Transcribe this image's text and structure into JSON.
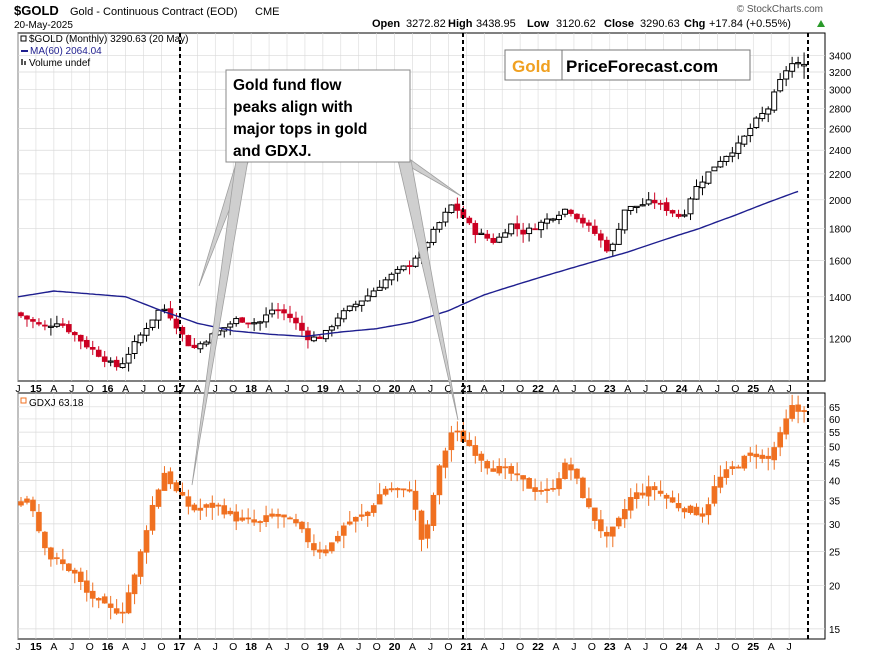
{
  "header": {
    "symbol": "$GOLD",
    "name": "Gold - Continuous Contract (EOD)",
    "exchange": "CME",
    "date": "20-May-2025",
    "open_label": "Open",
    "open": "3272.82",
    "high_label": "High",
    "high": "3438.95",
    "low_label": "Low",
    "low": "3120.62",
    "close_label": "Close",
    "close": "3290.63",
    "chg_label": "Chg",
    "chg": "+17.84 (+0.55%)",
    "watermark": "© StockCharts.com"
  },
  "legend": {
    "line1": "$GOLD (Monthly) 3290.63 (20 May)",
    "line2": "MA(60) 2064.04",
    "line3": "Volume undef",
    "gdxj": "GDXJ 63.18"
  },
  "annotation": {
    "lines": [
      "Gold fund flow",
      "peaks align with",
      "major tops in gold",
      "and GDXJ."
    ]
  },
  "logo": {
    "word1": "Gold",
    "word2": "PriceForecast.com"
  },
  "colors": {
    "up": "#000000",
    "down": "#cc0022",
    "ma": "#1f1f8f",
    "gdxj": "#f07020",
    "logo_gold": "#f0a020",
    "arrow": "#c8c8c8",
    "grid": "#d9d9d9"
  },
  "chart_data": [
    {
      "type": "ohlc",
      "title": "$GOLD (Monthly)",
      "scale": "log",
      "ylim": [
        1050,
        3600
      ],
      "yticks": [
        1200,
        1400,
        1600,
        1800,
        2000,
        2200,
        2400,
        2600,
        2800,
        3000,
        3200,
        3400
      ],
      "x_start": 2014.5,
      "x_end": 2025.75,
      "x_tick_labels": [
        "J",
        "15",
        "A",
        "J",
        "O",
        "16",
        "A",
        "J",
        "O",
        "17",
        "A",
        "J",
        "O",
        "18",
        "A",
        "J",
        "O",
        "19",
        "A",
        "J",
        "O",
        "20",
        "A",
        "J",
        "O",
        "21",
        "A",
        "J",
        "O",
        "22",
        "A",
        "J",
        "O",
        "23",
        "A",
        "J",
        "O",
        "24",
        "A",
        "J",
        "O",
        "25",
        "A",
        "J"
      ],
      "anchors": [
        [
          2014.5,
          1320
        ],
        [
          2014.9,
          1250
        ],
        [
          2015.1,
          1280
        ],
        [
          2015.5,
          1170
        ],
        [
          2015.9,
          1080
        ],
        [
          2016.0,
          1100
        ],
        [
          2016.5,
          1330
        ],
        [
          2016.6,
          1340
        ],
        [
          2016.9,
          1180
        ],
        [
          2017.0,
          1160
        ],
        [
          2017.6,
          1290
        ],
        [
          2017.9,
          1270
        ],
        [
          2018.1,
          1340
        ],
        [
          2018.3,
          1310
        ],
        [
          2018.6,
          1200
        ],
        [
          2018.8,
          1210
        ],
        [
          2019.0,
          1300
        ],
        [
          2019.4,
          1400
        ],
        [
          2019.7,
          1500
        ],
        [
          2020.0,
          1580
        ],
        [
          2020.2,
          1680
        ],
        [
          2020.6,
          1970
        ],
        [
          2020.9,
          1780
        ],
        [
          2021.2,
          1710
        ],
        [
          2021.4,
          1830
        ],
        [
          2021.6,
          1770
        ],
        [
          2022.2,
          1940
        ],
        [
          2022.6,
          1760
        ],
        [
          2022.8,
          1640
        ],
        [
          2023.0,
          1930
        ],
        [
          2023.4,
          1990
        ],
        [
          2023.8,
          1870
        ],
        [
          2023.95,
          2060
        ],
        [
          2024.3,
          2300
        ],
        [
          2024.6,
          2450
        ],
        [
          2024.8,
          2650
        ],
        [
          2025.0,
          2800
        ],
        [
          2025.2,
          3150
        ],
        [
          2025.3,
          3300
        ],
        [
          2025.38,
          3290
        ]
      ],
      "ma_label": "MA(60)",
      "ma_last": 2064.04,
      "ma_anchors": [
        [
          2014.5,
          1400
        ],
        [
          2015.0,
          1430
        ],
        [
          2016.0,
          1400
        ],
        [
          2016.5,
          1330
        ],
        [
          2017.0,
          1270
        ],
        [
          2017.5,
          1235
        ],
        [
          2018.0,
          1220
        ],
        [
          2018.5,
          1210
        ],
        [
          2019.0,
          1230
        ],
        [
          2019.5,
          1245
        ],
        [
          2020.0,
          1275
        ],
        [
          2020.5,
          1330
        ],
        [
          2021.0,
          1410
        ],
        [
          2022.0,
          1530
        ],
        [
          2023.0,
          1650
        ],
        [
          2024.0,
          1800
        ],
        [
          2024.5,
          1890
        ],
        [
          2025.0,
          1990
        ],
        [
          2025.38,
          2064
        ]
      ],
      "last_bar": {
        "open": 3272.82,
        "high": 3438.95,
        "low": 3120.62,
        "close": 3290.63
      }
    },
    {
      "type": "ohlc",
      "title": "GDXJ",
      "scale": "log",
      "ylim": [
        14.5,
        68
      ],
      "yticks": [
        15,
        20,
        25,
        30,
        35,
        40,
        45,
        50,
        55,
        60,
        65
      ],
      "x_start": 2014.5,
      "x_end": 2025.75,
      "x_tick_labels": [
        "J",
        "15",
        "A",
        "J",
        "O",
        "16",
        "A",
        "J",
        "O",
        "17",
        "A",
        "J",
        "O",
        "18",
        "A",
        "J",
        "O",
        "19",
        "A",
        "J",
        "O",
        "20",
        "A",
        "J",
        "O",
        "21",
        "A",
        "J",
        "O",
        "22",
        "A",
        "J",
        "O",
        "23",
        "A",
        "J",
        "O",
        "24",
        "A",
        "J",
        "O",
        "25",
        "A",
        "J"
      ],
      "anchors": [
        [
          2014.5,
          34
        ],
        [
          2014.7,
          36
        ],
        [
          2014.85,
          28
        ],
        [
          2015.0,
          24
        ],
        [
          2015.3,
          22
        ],
        [
          2015.5,
          19
        ],
        [
          2015.8,
          17
        ],
        [
          2016.0,
          17
        ],
        [
          2016.2,
          22
        ],
        [
          2016.4,
          33
        ],
        [
          2016.6,
          43
        ],
        [
          2016.7,
          38
        ],
        [
          2016.9,
          34
        ],
        [
          2017.0,
          33
        ],
        [
          2017.3,
          34
        ],
        [
          2017.6,
          31
        ],
        [
          2017.9,
          30
        ],
        [
          2018.1,
          32
        ],
        [
          2018.4,
          30
        ],
        [
          2018.7,
          25
        ],
        [
          2018.9,
          26
        ],
        [
          2019.1,
          30
        ],
        [
          2019.4,
          32
        ],
        [
          2019.65,
          38
        ],
        [
          2019.9,
          37
        ],
        [
          2020.0,
          38
        ],
        [
          2020.2,
          25
        ],
        [
          2020.4,
          42
        ],
        [
          2020.6,
          56
        ],
        [
          2020.85,
          50
        ],
        [
          2021.1,
          44
        ],
        [
          2021.4,
          42
        ],
        [
          2021.7,
          38
        ],
        [
          2021.95,
          37
        ],
        [
          2022.2,
          45
        ],
        [
          2022.5,
          33
        ],
        [
          2022.75,
          27
        ],
        [
          2022.9,
          30
        ],
        [
          2023.1,
          36
        ],
        [
          2023.4,
          38
        ],
        [
          2023.7,
          34
        ],
        [
          2023.9,
          33
        ],
        [
          2024.1,
          32
        ],
        [
          2024.3,
          40
        ],
        [
          2024.6,
          45
        ],
        [
          2024.8,
          48
        ],
        [
          2025.0,
          46
        ],
        [
          2025.2,
          55
        ],
        [
          2025.32,
          65
        ],
        [
          2025.38,
          63.18
        ]
      ],
      "last_close": 63.18
    }
  ]
}
